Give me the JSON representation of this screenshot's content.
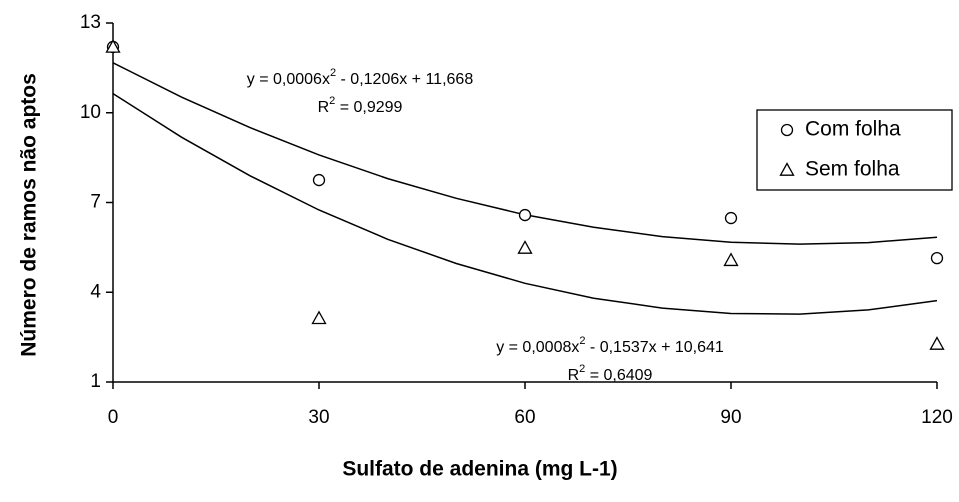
{
  "chart_data": {
    "type": "scatter",
    "x_label": "Sulfato de adenina (mg L-1)",
    "y_label": "Número de ramos não aptos",
    "x": [
      0,
      30,
      60,
      90,
      120
    ],
    "series": [
      {
        "name": "Com folha",
        "marker": "circle",
        "color": "#000000",
        "values": [
          12.2,
          7.75,
          6.58,
          6.48,
          5.14
        ]
      },
      {
        "name": "Sem folha",
        "marker": "triangle",
        "color": "#000000",
        "values": [
          12.2,
          3.13,
          5.48,
          5.07,
          2.27
        ]
      }
    ],
    "trendlines": [
      {
        "x": [
          0,
          10,
          20,
          30,
          40,
          50,
          60,
          70,
          80,
          90,
          100,
          110,
          120
        ],
        "values": [
          11.67,
          10.52,
          9.5,
          8.59,
          7.8,
          7.14,
          6.59,
          6.17,
          5.86,
          5.67,
          5.61,
          5.66,
          5.84
        ]
      },
      {
        "x": [
          0,
          10,
          20,
          30,
          40,
          50,
          60,
          70,
          80,
          90,
          100,
          110,
          120
        ],
        "values": [
          10.64,
          9.18,
          7.89,
          6.75,
          5.77,
          4.96,
          4.3,
          3.8,
          3.47,
          3.29,
          3.27,
          3.41,
          3.72
        ]
      }
    ],
    "annotations": [
      {
        "equation": {
          "before": "y = 0,0006x",
          "sup": "2",
          "after": " - 0,1206x + 11,668"
        },
        "r2": {
          "before": "R",
          "sup": "2",
          "after": " = 0,9299"
        }
      },
      {
        "equation": {
          "before": "y = 0,0008x",
          "sup": "2",
          "after": " - 0,1537x + 10,641"
        },
        "r2": {
          "before": "R",
          "sup": "2",
          "after": " = 0,6409"
        }
      }
    ],
    "xlim": [
      0,
      120
    ],
    "xticks": [
      0,
      30,
      60,
      90,
      120
    ],
    "ylim": [
      1,
      13
    ],
    "yticks": [
      1,
      4,
      7,
      10,
      13
    ],
    "legend": "right"
  }
}
